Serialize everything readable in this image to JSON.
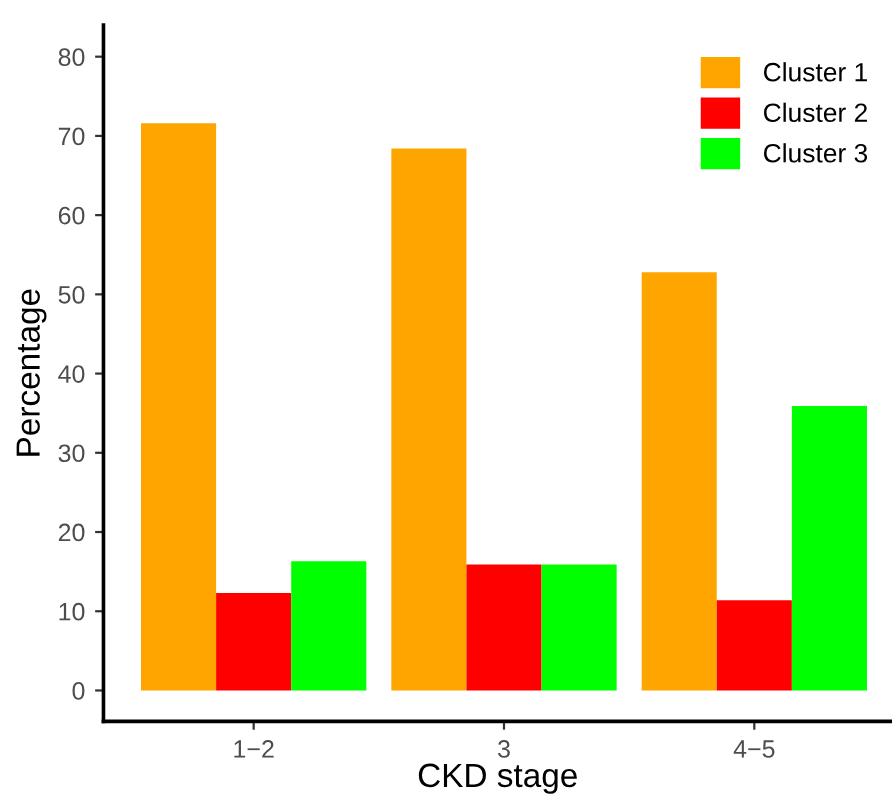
{
  "chart_data": {
    "type": "bar",
    "xlabel": "CKD stage",
    "ylabel": "Percentage",
    "categories": [
      "1−2",
      "3",
      "4−5"
    ],
    "series": [
      {
        "name": "Cluster 1",
        "color": "#ffa500",
        "values": [
          71.6,
          68.4,
          52.8
        ]
      },
      {
        "name": "Cluster 2",
        "color": "#ff0000",
        "values": [
          12.3,
          15.9,
          11.4
        ]
      },
      {
        "name": "Cluster 3",
        "color": "#00ff00",
        "values": [
          16.3,
          15.9,
          35.9
        ]
      }
    ],
    "ylim": [
      -3.9,
      84
    ],
    "yticks": [
      0,
      10,
      20,
      30,
      40,
      50,
      60,
      70,
      80
    ],
    "grid": false,
    "legend": "top right"
  }
}
